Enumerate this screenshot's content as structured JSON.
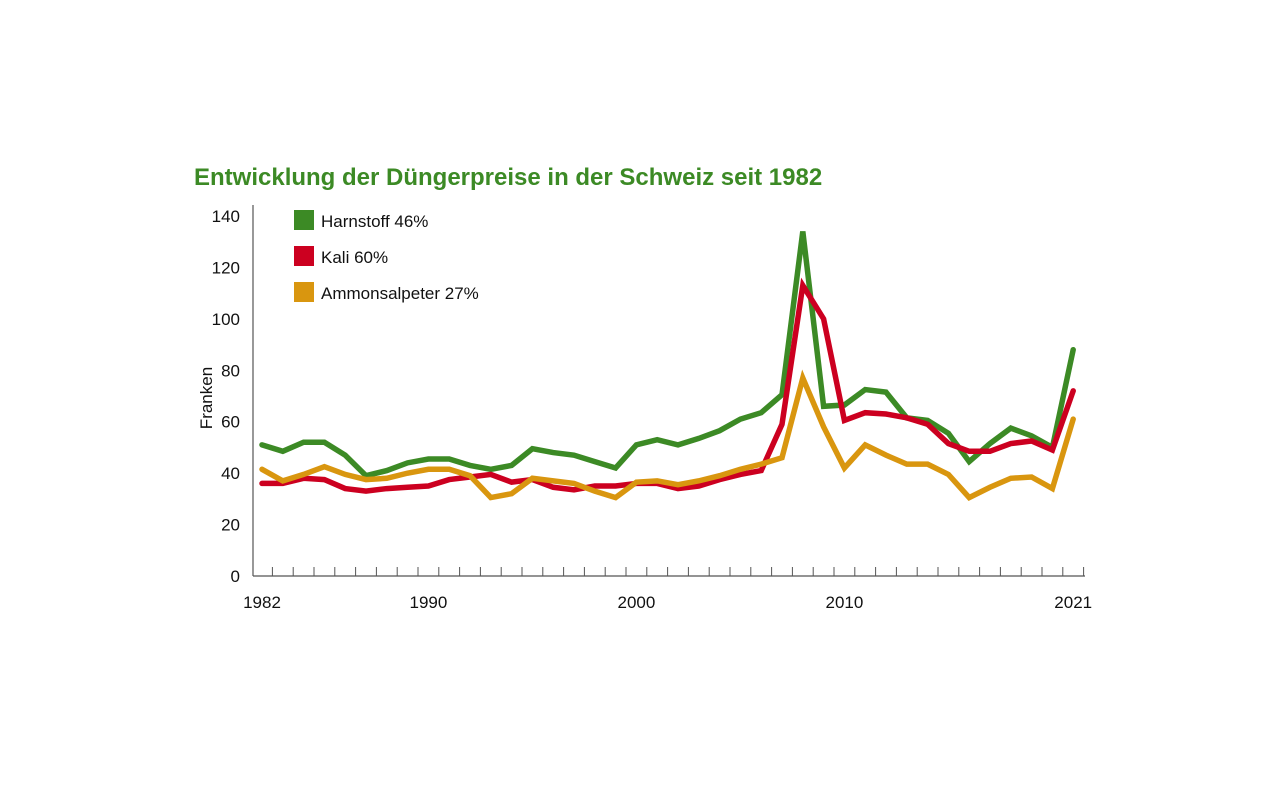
{
  "chart_data": {
    "type": "line",
    "title": "Entwicklung der Düngerpreise in der Schweiz seit 1982",
    "xlabel": "",
    "ylabel": "Franken",
    "ylim": [
      0,
      140
    ],
    "yticks": [
      0,
      20,
      40,
      60,
      80,
      100,
      120,
      140
    ],
    "xlim": [
      1982,
      2021
    ],
    "xtick_labels": [
      "1982",
      "1990",
      "2000",
      "2010",
      "2021"
    ],
    "grid": false,
    "legend_placement": "top-left",
    "x": [
      1982,
      1983,
      1984,
      1985,
      1986,
      1987,
      1988,
      1989,
      1990,
      1991,
      1992,
      1993,
      1994,
      1995,
      1996,
      1997,
      1998,
      1999,
      2000,
      2001,
      2002,
      2003,
      2004,
      2005,
      2006,
      2007,
      2008,
      2009,
      2010,
      2011,
      2012,
      2013,
      2014,
      2015,
      2016,
      2017,
      2018,
      2019,
      2020,
      2021
    ],
    "series": [
      {
        "name": "Harnstoff 46%",
        "color": "#3c8a25",
        "values": [
          51,
          48.5,
          52,
          52,
          47,
          39,
          41,
          44,
          45.5,
          45.5,
          43,
          41.5,
          43,
          49.5,
          48,
          47,
          44.5,
          42,
          51,
          53,
          51,
          53.5,
          56.5,
          61,
          63.5,
          70.5,
          134,
          66,
          66.5,
          72.5,
          71.5,
          61.5,
          60.5,
          55.5,
          44.5,
          51.5,
          57.5,
          54.5,
          50,
          88
        ]
      },
      {
        "name": "Kali 60%",
        "color": "#cc0020",
        "values": [
          36,
          36,
          38,
          37.5,
          34,
          33,
          34,
          34.5,
          35,
          37.5,
          38.5,
          39.5,
          36.5,
          37.5,
          34.5,
          33.5,
          35,
          35,
          36,
          36,
          34,
          35,
          37.5,
          39.5,
          41,
          59,
          113,
          100,
          60.5,
          63.5,
          63,
          61.5,
          59,
          51.5,
          48.5,
          48.5,
          51.5,
          52.5,
          49,
          72
        ]
      },
      {
        "name": "Ammonsalpeter 27%",
        "color": "#d9960f",
        "values": [
          41.5,
          37,
          39.5,
          42.5,
          39.5,
          37.5,
          38,
          40,
          41.5,
          41.5,
          39,
          30.5,
          32,
          38,
          37,
          36,
          33,
          30.5,
          36.5,
          37,
          35.5,
          37,
          39,
          41.5,
          43.5,
          46,
          77,
          58,
          42,
          51,
          47,
          43.5,
          43.5,
          39.5,
          30.5,
          34.5,
          38,
          38.5,
          34,
          61
        ]
      }
    ]
  }
}
